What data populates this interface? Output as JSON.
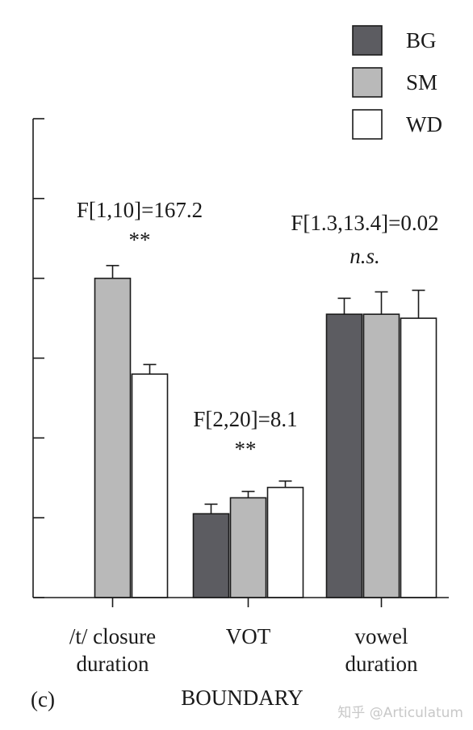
{
  "chart_data": {
    "type": "bar",
    "title": "",
    "xlabel": "BOUNDARY",
    "ylabel": "",
    "panel_label": "(c)",
    "ylim": [
      0,
      6
    ],
    "yticks": [
      0,
      1,
      2,
      3,
      4,
      5,
      6
    ],
    "grid": false,
    "legend_position": "top-right",
    "categories": [
      {
        "lines": [
          "/t/ closure",
          "duration"
        ]
      },
      {
        "lines": [
          "VOT"
        ]
      },
      {
        "lines": [
          "vowel",
          "duration"
        ]
      }
    ],
    "series": [
      {
        "name": "BG",
        "color": "#5c5c61",
        "values": [
          null,
          1.05,
          3.55
        ],
        "errors": [
          null,
          0.12,
          0.2
        ]
      },
      {
        "name": "SM",
        "color": "#b9b9b9",
        "values": [
          4.0,
          1.25,
          3.55
        ],
        "errors": [
          0.16,
          0.08,
          0.28
        ]
      },
      {
        "name": "WD",
        "color": "#ffffff",
        "values": [
          2.8,
          1.38,
          3.5
        ],
        "errors": [
          0.12,
          0.08,
          0.35
        ]
      }
    ],
    "annotations": [
      {
        "category": 0,
        "stat": "F[1,10]=167.2",
        "sig": "**",
        "sig_italic": false
      },
      {
        "category": 1,
        "stat": "F[2,20]=8.1",
        "sig": "**",
        "sig_italic": false
      },
      {
        "category": 2,
        "stat": "F[1.3,13.4]=0.02",
        "sig": "n.s.",
        "sig_italic": true
      }
    ]
  },
  "watermark": "知乎 @Articulatum"
}
